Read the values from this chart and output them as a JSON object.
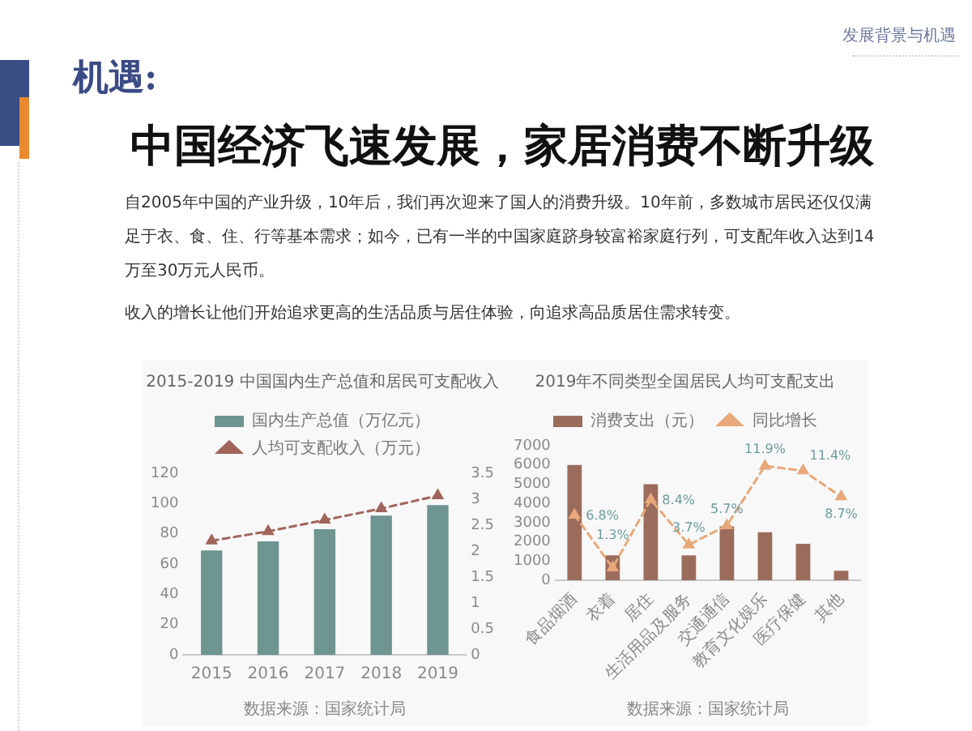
{
  "chart_data": [
    {
      "type": "other",
      "title": "中国经济飞速发展，家居消费不断升级",
      "annotations": [
        "发展背景与机遇",
        "机遇:",
        "自2005年中国的产业升级，10年后，我们再次迎来了国人的消费升级。10年前，多数城市居民还仅仅满足于衣、食、住、行等基本需求；如今，已有一半的中国家庭跻身较富裕家庭行列，可支配年收入达到14万至30万元人民币。",
        "收入的增长让他们开始追求更高的生活品质与居住体验，向追求高品质居住需求转变。"
      ]
    },
    {
      "type": "bar",
      "title": "2015-2019 中国国内生产总值和居民可支配收入",
      "categories": [
        "2015",
        "2016",
        "2017",
        "2018",
        "2019"
      ],
      "series": [
        {
          "name": "国内生产总值（万亿元）",
          "color": "#6e958f",
          "values": [
            69,
            75,
            83,
            92,
            99
          ]
        },
        {
          "name": "人均可支配收入（万元）",
          "type": "line",
          "axis": "y2",
          "color": "#a0645a",
          "values": [
            2.2,
            2.38,
            2.6,
            2.82,
            3.07
          ]
        }
      ],
      "ylim": [
        0,
        120
      ],
      "yticks": [
        0,
        20,
        40,
        60,
        80,
        100,
        120
      ],
      "y2lim": [
        0,
        3.5
      ],
      "y2ticks": [
        0,
        0.5,
        1,
        1.5,
        2,
        2.5,
        3,
        3.5
      ],
      "marker": "triangle",
      "line_style": "dashed",
      "legend": "top",
      "annotations": [
        "数据来源：国家统计局"
      ]
    },
    {
      "type": "bar",
      "title": "2019年不同类型全国居民人均可支配支出",
      "categories": [
        "食品烟酒",
        "衣着",
        "居住",
        "生活用品及服务",
        "交通通信",
        "教育文化娱乐",
        "医疗保健",
        "其他"
      ],
      "series": [
        {
          "name": "消费支出（元）",
          "color": "#9b6c5c",
          "values": [
            6000,
            1300,
            5000,
            1300,
            2800,
            2500,
            1900,
            500
          ]
        },
        {
          "name": "同比增长",
          "type": "line",
          "axis": "y2",
          "color": "#e8a87a",
          "values": [
            6.8,
            1.3,
            8.4,
            3.7,
            5.7,
            11.9,
            11.4,
            8.7
          ],
          "value_labels": [
            "6.8%",
            "1.3%",
            "8.4%",
            "3.7%",
            "5.7%",
            "11.9%",
            "11.4%",
            "8.7%"
          ]
        }
      ],
      "ylim": [
        0,
        7000
      ],
      "yticks": [
        0,
        1000,
        2000,
        3000,
        4000,
        5000,
        6000,
        7000
      ],
      "marker": "triangle",
      "line_style": "dashed",
      "legend": "top",
      "annotations": [
        "数据来源：国家统计局"
      ]
    }
  ]
}
